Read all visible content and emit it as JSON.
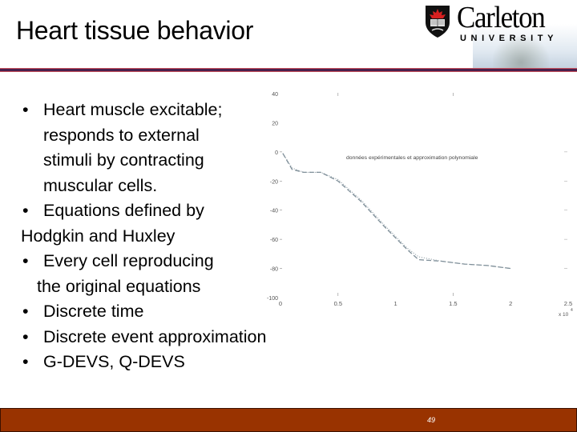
{
  "slide": {
    "title": "Heart tissue behavior",
    "page_number": "49",
    "colors": {
      "divider": "#4a1f4c",
      "divider_edge": "#c7515c",
      "footer": "#993300"
    }
  },
  "logo": {
    "name": "Carleton",
    "subtitle": "UNIVERSITY",
    "icon": "shield-maple-leaf-book-icon"
  },
  "bullets": {
    "l1": "Heart muscle excitable;",
    "l2": "responds to external",
    "l3": "stimuli by contracting",
    "l4": "muscular cells.",
    "l5": "Equations defined by",
    "l6": "Hodgkin and Huxley",
    "l7": "Every cell reproducing",
    "l8": "the original equations",
    "l9": "Discrete time",
    "l10": "Discrete event approximation",
    "l11": "G-DEVS, Q-DEVS",
    "marker": "•"
  },
  "chart_data": {
    "type": "line",
    "title": "",
    "annotation": "données expérimentales et approximation polynomiale",
    "xlabel": "",
    "ylabel": "",
    "x_multiplier": "x 10^4",
    "xlim": [
      0,
      2.5
    ],
    "ylim": [
      -100,
      40
    ],
    "x_ticks": [
      "0",
      "0.5",
      "1",
      "1.5",
      "2",
      "2.5"
    ],
    "y_ticks": [
      "40",
      "20",
      "0",
      "-20",
      "-40",
      "-60",
      "-80",
      "-100"
    ],
    "grid": false,
    "legend": null,
    "series": [
      {
        "name": "données expérimentales",
        "style": "dotted",
        "x": [
          0.02,
          0.1,
          0.2,
          0.35,
          0.5,
          0.7,
          0.9,
          1.1,
          1.2,
          1.4,
          1.6,
          1.8,
          2.0
        ],
        "y": [
          -1,
          -11,
          -14,
          -14,
          -19,
          -33,
          -50,
          -66,
          -72,
          -75,
          -77,
          -78,
          -80
        ]
      },
      {
        "name": "approximation polynomiale",
        "style": "dashed",
        "x": [
          0.02,
          0.1,
          0.2,
          0.35,
          0.5,
          0.7,
          0.9,
          1.1,
          1.2,
          1.4,
          1.6,
          1.8,
          2.0
        ],
        "y": [
          -1,
          -12,
          -14,
          -14,
          -20,
          -34,
          -51,
          -67,
          -74,
          -75,
          -77,
          -78,
          -80
        ]
      }
    ]
  }
}
